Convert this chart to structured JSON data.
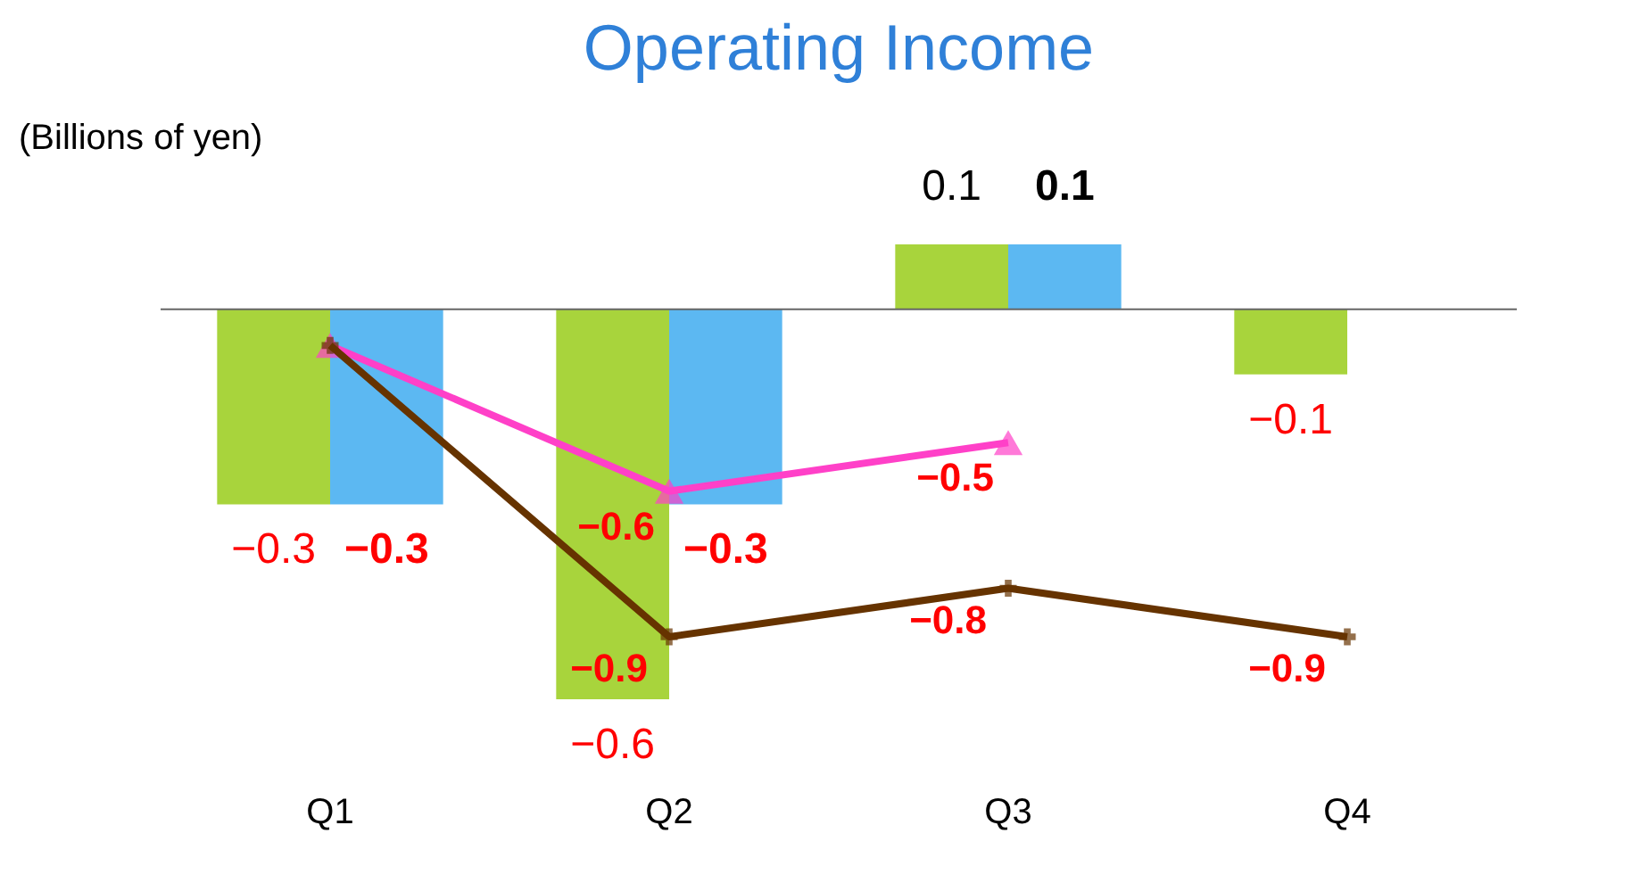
{
  "chart_data": {
    "type": "bar",
    "title": "Operating Income",
    "ylabel": "(Billions of yen)",
    "categories": [
      "Q1",
      "Q2",
      "Q3",
      "Q4"
    ],
    "grid": false,
    "series": [
      {
        "color": "#a8d43c",
        "values": [
          -0.3,
          -0.6,
          0.1,
          -0.1
        ],
        "value_labels": [
          "−0.3",
          "−0.6",
          "0.1",
          "−0.1"
        ]
      },
      {
        "color": "#5cb8f2",
        "values": [
          -0.3,
          -0.3,
          0.1,
          null
        ],
        "value_labels": [
          "−0.3",
          "−0.3",
          "0.1",
          null
        ]
      },
      {
        "type": "line",
        "axis": "y2",
        "color": "#ff40c8",
        "marker": "triangle",
        "values": [
          -0.3,
          -0.6,
          -0.5,
          null
        ],
        "value_labels": [
          null,
          "−0.6",
          "−0.5",
          null
        ]
      },
      {
        "type": "line",
        "axis": "y2",
        "color": "#663300",
        "marker": "cross",
        "values": [
          -0.3,
          -0.9,
          -0.8,
          -0.9
        ],
        "value_labels": [
          null,
          "−0.9",
          "−0.8",
          "−0.9"
        ]
      }
    ]
  }
}
